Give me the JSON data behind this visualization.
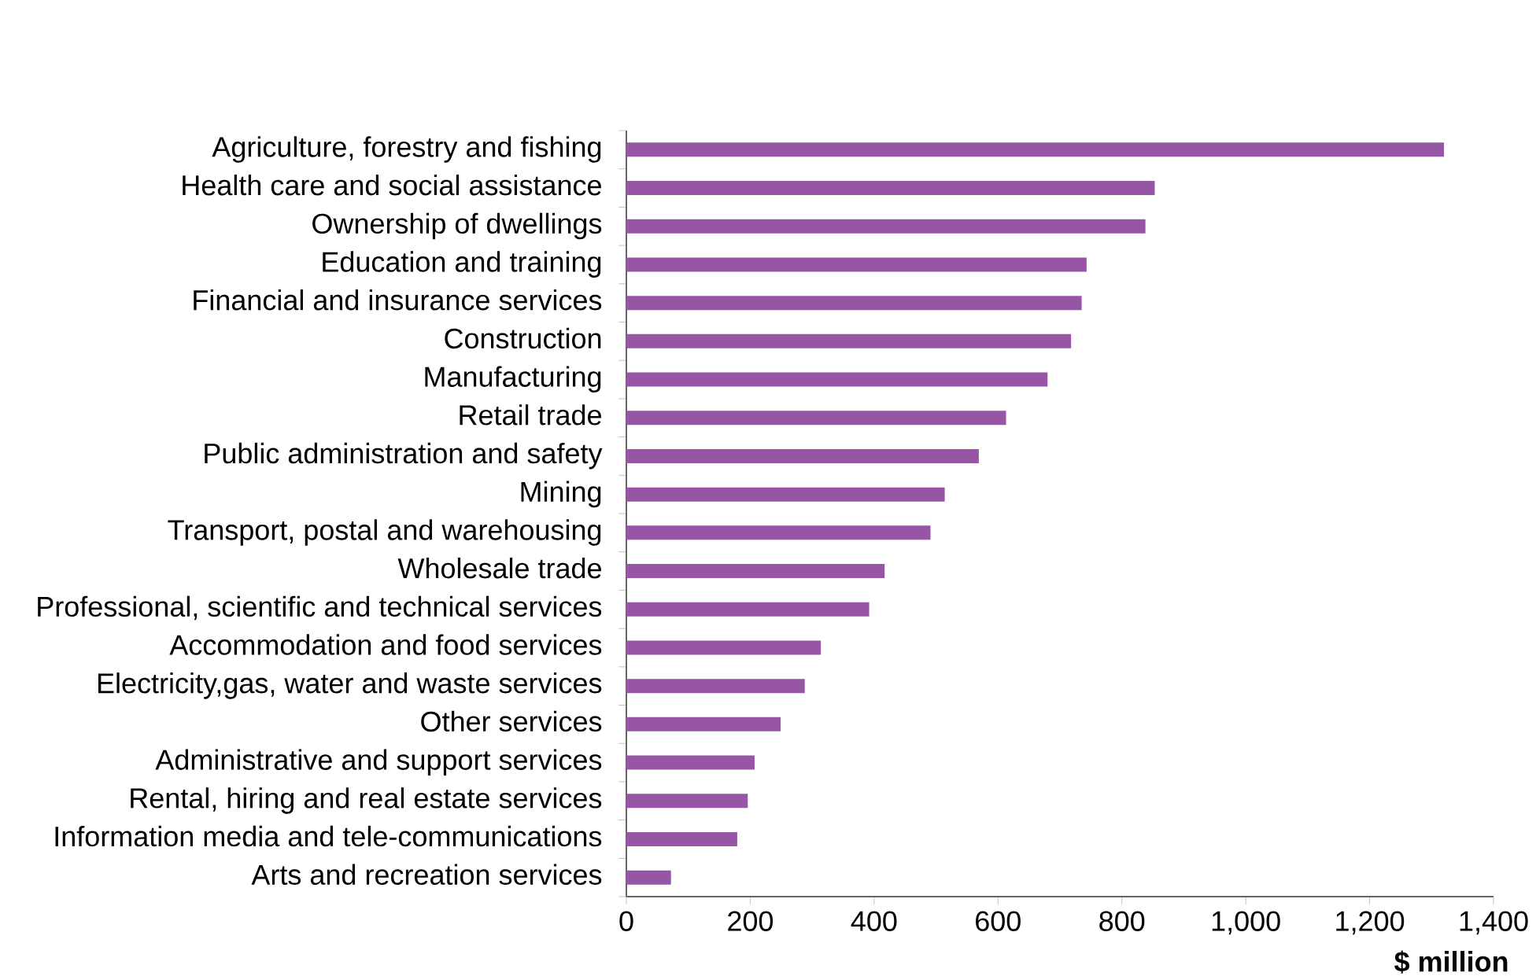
{
  "chart_data": {
    "type": "bar",
    "orientation": "horizontal",
    "xlabel": "$ million",
    "color": "#9655a5",
    "categories": [
      "Agriculture, forestry and fishing",
      "Health care and social assistance",
      "Ownership of dwellings",
      "Education and training",
      "Financial and insurance services",
      "Construction",
      "Manufacturing",
      "Retail trade",
      "Public administration and safety",
      "Mining",
      "Transport, postal and warehousing",
      "Wholesale trade",
      "Professional, scientific and technical services",
      "Accommodation and food services",
      "Electricity,gas, water and waste services",
      "Other services",
      "Administrative and support services",
      "Rental, hiring and real estate services",
      "Information media and tele-communications",
      "Arts and recreation services"
    ],
    "values": [
      1320,
      853,
      838,
      743,
      735,
      718,
      680,
      613,
      569,
      514,
      491,
      417,
      392,
      314,
      288,
      249,
      207,
      196,
      179,
      72
    ],
    "xlim": [
      0,
      1400
    ],
    "xticks": [
      0,
      200,
      400,
      600,
      800,
      {
        "value": 1000,
        "label": "1,000"
      },
      {
        "value": 1200,
        "label": "1,200"
      },
      {
        "value": 1400,
        "label": "1,400"
      }
    ],
    "grid": false
  }
}
